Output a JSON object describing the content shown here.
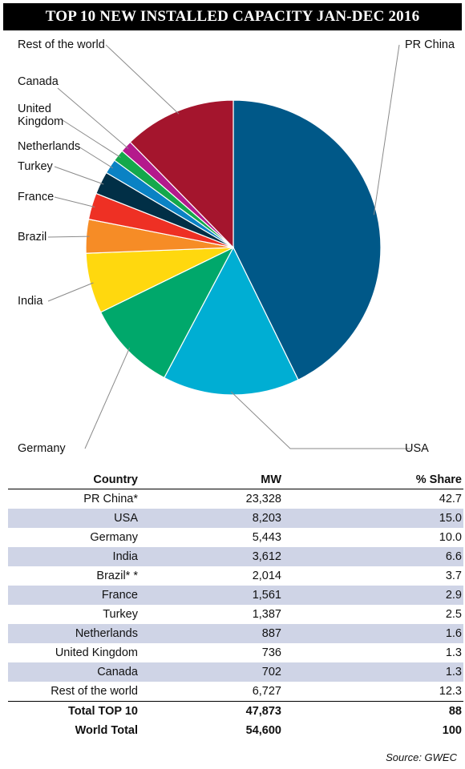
{
  "title": "TOP 10 NEW INSTALLED CAPACITY JAN-DEC 2016",
  "chart_data": {
    "type": "pie",
    "slices": [
      {
        "label": "PR China",
        "value": 42.7,
        "color": "#005888"
      },
      {
        "label": "USA",
        "value": 15.0,
        "color": "#00aed3"
      },
      {
        "label": "Germany",
        "value": 10.0,
        "color": "#00a86b"
      },
      {
        "label": "India",
        "value": 6.6,
        "color": "#ffd80e"
      },
      {
        "label": "Brazil",
        "value": 3.7,
        "color": "#f68c26"
      },
      {
        "label": "France",
        "value": 2.9,
        "color": "#ee3024"
      },
      {
        "label": "Turkey",
        "value": 2.5,
        "color": "#012f46"
      },
      {
        "label": "Netherlands",
        "value": 1.6,
        "color": "#0a82c4"
      },
      {
        "label": "United\nKingdom",
        "value": 1.3,
        "color": "#14a84b"
      },
      {
        "label": "Canada",
        "value": 1.3,
        "color": "#b41a8c"
      },
      {
        "label": "Rest of the world",
        "value": 12.3,
        "color": "#a4152d"
      }
    ]
  },
  "table": {
    "headers": {
      "country": "Country",
      "mw": "MW",
      "share": "% Share"
    },
    "rows": [
      {
        "country": "PR China*",
        "mw": "23,328",
        "share": "42.7"
      },
      {
        "country": "USA",
        "mw": "8,203",
        "share": "15.0"
      },
      {
        "country": "Germany",
        "mw": "5,443",
        "share": "10.0"
      },
      {
        "country": "India",
        "mw": "3,612",
        "share": "6.6"
      },
      {
        "country": "Brazil* *",
        "mw": "2,014",
        "share": "3.7"
      },
      {
        "country": "France",
        "mw": "1,561",
        "share": "2.9"
      },
      {
        "country": "Turkey",
        "mw": "1,387",
        "share": "2.5"
      },
      {
        "country": "Netherlands",
        "mw": "887",
        "share": "1.6"
      },
      {
        "country": "United Kingdom",
        "mw": "736",
        "share": "1.3"
      },
      {
        "country": "Canada",
        "mw": "702",
        "share": "1.3"
      },
      {
        "country": "Rest of the world",
        "mw": "6,727",
        "share": "12.3"
      }
    ],
    "totals": [
      {
        "country": "Total TOP 10",
        "mw": "47,873",
        "share": "88"
      },
      {
        "country": "World Total",
        "mw": "54,600",
        "share": "100"
      }
    ]
  },
  "source": "Source: GWEC"
}
